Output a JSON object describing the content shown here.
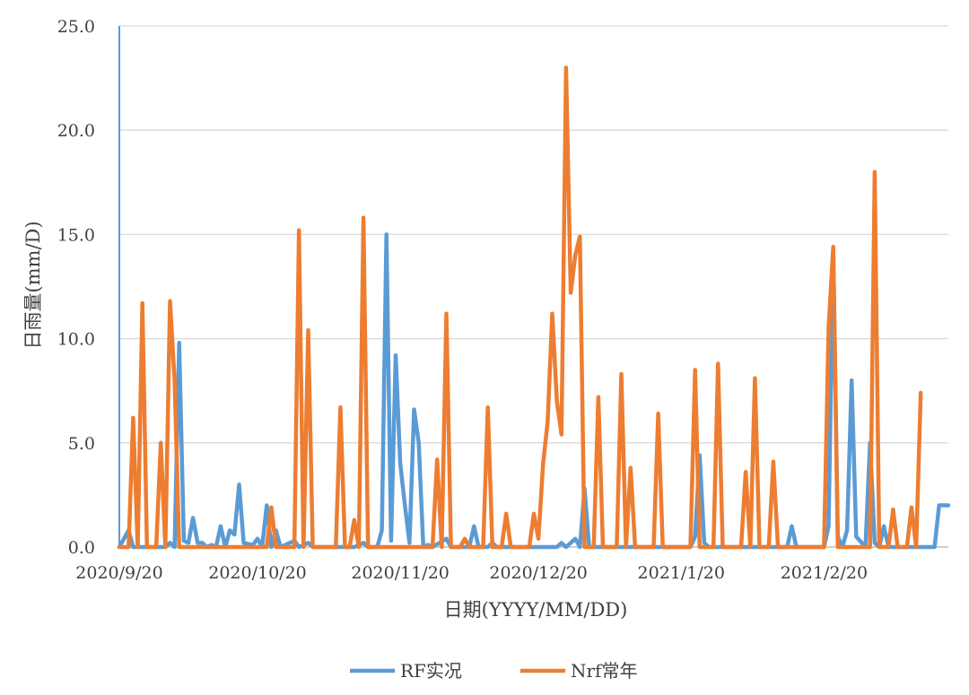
{
  "chart_data": {
    "type": "line",
    "xlabel": "日期(YYYY/MM/DD)",
    "ylabel": "日雨量(mm/D)",
    "ylim": [
      0,
      25
    ],
    "yticks": [
      "0.0",
      "5.0",
      "10.0",
      "15.0",
      "20.0",
      "25.0"
    ],
    "x_start": "2020/9/20",
    "x_end": "2021/3/19",
    "xticks": [
      "2020/9/20",
      "2020/10/20",
      "2020/11/20",
      "2020/12/20",
      "2021/1/20",
      "2021/2/20"
    ],
    "grid": true,
    "legend_position": "bottom",
    "series": [
      {
        "name": "RF实况",
        "color": "#5B9BD5",
        "points": [
          [
            "2020/9/20",
            0
          ],
          [
            "2020/9/22",
            0.8
          ],
          [
            "2020/9/23",
            0
          ],
          [
            "2020/9/30",
            0
          ],
          [
            "2020/10/1",
            0.2
          ],
          [
            "2020/10/2",
            0
          ],
          [
            "2020/10/3",
            9.8
          ],
          [
            "2020/10/4",
            0.3
          ],
          [
            "2020/10/5",
            0.2
          ],
          [
            "2020/10/6",
            1.4
          ],
          [
            "2020/10/7",
            0.2
          ],
          [
            "2020/10/8",
            0.2
          ],
          [
            "2020/10/9",
            0
          ],
          [
            "2020/10/10",
            0.1
          ],
          [
            "2020/10/11",
            0
          ],
          [
            "2020/10/12",
            1.0
          ],
          [
            "2020/10/13",
            0
          ],
          [
            "2020/10/14",
            0.8
          ],
          [
            "2020/10/15",
            0.6
          ],
          [
            "2020/10/16",
            3.0
          ],
          [
            "2020/10/17",
            0.2
          ],
          [
            "2020/10/19",
            0.1
          ],
          [
            "2020/10/20",
            0.4
          ],
          [
            "2020/10/21",
            0
          ],
          [
            "2020/10/22",
            2.0
          ],
          [
            "2020/10/23",
            0
          ],
          [
            "2020/10/24",
            0.8
          ],
          [
            "2020/10/25",
            0
          ],
          [
            "2020/10/28",
            0.3
          ],
          [
            "2020/10/29",
            0
          ],
          [
            "2020/10/31",
            0.2
          ],
          [
            "2020/11/1",
            0
          ],
          [
            "2020/11/10",
            0
          ],
          [
            "2020/11/12",
            0.2
          ],
          [
            "2020/11/13",
            0
          ],
          [
            "2020/11/15",
            0
          ],
          [
            "2020/11/16",
            0.8
          ],
          [
            "2020/11/17",
            15.0
          ],
          [
            "2020/11/18",
            0.3
          ],
          [
            "2020/11/19",
            9.2
          ],
          [
            "2020/11/20",
            4.0
          ],
          [
            "2020/11/21",
            2.0
          ],
          [
            "2020/11/22",
            0.2
          ],
          [
            "2020/11/23",
            6.6
          ],
          [
            "2020/11/24",
            5.0
          ],
          [
            "2020/11/25",
            0
          ],
          [
            "2020/11/26",
            0.1
          ],
          [
            "2020/11/27",
            0
          ],
          [
            "2020/11/30",
            0.4
          ],
          [
            "2020/12/1",
            0
          ],
          [
            "2020/12/5",
            0
          ],
          [
            "2020/12/6",
            1.0
          ],
          [
            "2020/12/7",
            0
          ],
          [
            "2020/12/9",
            0
          ],
          [
            "2020/12/10",
            0.2
          ],
          [
            "2020/12/11",
            0
          ],
          [
            "2020/12/24",
            0
          ],
          [
            "2020/12/25",
            0.2
          ],
          [
            "2020/12/26",
            0
          ],
          [
            "2020/12/28",
            0.4
          ],
          [
            "2020/12/29",
            0
          ],
          [
            "2020/12/30",
            2.8
          ],
          [
            "2020/12/31",
            0
          ],
          [
            "2021/1/22",
            0
          ],
          [
            "2021/1/23",
            0.5
          ],
          [
            "2021/1/24",
            4.4
          ],
          [
            "2021/1/25",
            0.2
          ],
          [
            "2021/1/26",
            0
          ],
          [
            "2021/2/12",
            0
          ],
          [
            "2021/2/13",
            1.0
          ],
          [
            "2021/2/14",
            0
          ],
          [
            "2021/2/20",
            0
          ],
          [
            "2021/2/21",
            1.0
          ],
          [
            "2021/2/22",
            14.2
          ],
          [
            "2021/2/23",
            0.5
          ],
          [
            "2021/2/24",
            0
          ],
          [
            "2021/2/25",
            0.8
          ],
          [
            "2021/2/26",
            8.0
          ],
          [
            "2021/2/27",
            0.5
          ],
          [
            "2021/3/1",
            0
          ],
          [
            "2021/3/2",
            5.0
          ],
          [
            "2021/3/3",
            0.2
          ],
          [
            "2021/3/4",
            0
          ],
          [
            "2021/3/5",
            1.0
          ],
          [
            "2021/3/6",
            0
          ],
          [
            "2021/3/16",
            0
          ],
          [
            "2021/3/17",
            2.0
          ],
          [
            "2021/3/19",
            2.0
          ]
        ]
      },
      {
        "name": "Nrf常年",
        "color": "#ED7D31",
        "points": [
          [
            "2020/9/20",
            0
          ],
          [
            "2020/9/22",
            0
          ],
          [
            "2020/9/23",
            6.2
          ],
          [
            "2020/9/24",
            0
          ],
          [
            "2020/9/25",
            11.7
          ],
          [
            "2020/9/26",
            0
          ],
          [
            "2020/9/28",
            0
          ],
          [
            "2020/9/29",
            5.0
          ],
          [
            "2020/9/30",
            0
          ],
          [
            "2020/10/1",
            11.8
          ],
          [
            "2020/10/2",
            8.0
          ],
          [
            "2020/10/3",
            0
          ],
          [
            "2020/10/22",
            0
          ],
          [
            "2020/10/23",
            1.9
          ],
          [
            "2020/10/24",
            0
          ],
          [
            "2020/10/28",
            0
          ],
          [
            "2020/10/29",
            15.2
          ],
          [
            "2020/10/30",
            0
          ],
          [
            "2020/10/31",
            10.4
          ],
          [
            "2020/11/1",
            0
          ],
          [
            "2020/11/6",
            0
          ],
          [
            "2020/11/7",
            6.7
          ],
          [
            "2020/11/8",
            0
          ],
          [
            "2020/11/9",
            0
          ],
          [
            "2020/11/10",
            1.3
          ],
          [
            "2020/11/11",
            0
          ],
          [
            "2020/11/12",
            15.8
          ],
          [
            "2020/11/13",
            0
          ],
          [
            "2020/11/27",
            0
          ],
          [
            "2020/11/28",
            4.2
          ],
          [
            "2020/11/29",
            0
          ],
          [
            "2020/11/30",
            11.2
          ],
          [
            "2020/12/1",
            0
          ],
          [
            "2020/12/3",
            0
          ],
          [
            "2020/12/4",
            0.4
          ],
          [
            "2020/12/5",
            0
          ],
          [
            "2020/12/8",
            0
          ],
          [
            "2020/12/9",
            6.7
          ],
          [
            "2020/12/10",
            0
          ],
          [
            "2020/12/12",
            0
          ],
          [
            "2020/12/13",
            1.6
          ],
          [
            "2020/12/14",
            0
          ],
          [
            "2020/12/18",
            0
          ],
          [
            "2020/12/19",
            1.6
          ],
          [
            "2020/12/20",
            0.4
          ],
          [
            "2020/12/21",
            4.0
          ],
          [
            "2020/12/22",
            6.0
          ],
          [
            "2020/12/23",
            11.2
          ],
          [
            "2020/12/24",
            7.0
          ],
          [
            "2020/12/25",
            5.4
          ],
          [
            "2020/12/26",
            23.0
          ],
          [
            "2020/12/27",
            12.2
          ],
          [
            "2020/12/28",
            14.0
          ],
          [
            "2020/12/29",
            14.9
          ],
          [
            "2020/12/30",
            0
          ],
          [
            "2021/1/1",
            0
          ],
          [
            "2021/1/2",
            7.2
          ],
          [
            "2021/1/3",
            0
          ],
          [
            "2021/1/6",
            0
          ],
          [
            "2021/1/7",
            8.3
          ],
          [
            "2021/1/8",
            0
          ],
          [
            "2021/1/9",
            3.8
          ],
          [
            "2021/1/10",
            0
          ],
          [
            "2021/1/14",
            0
          ],
          [
            "2021/1/15",
            6.4
          ],
          [
            "2021/1/16",
            0
          ],
          [
            "2021/1/22",
            0
          ],
          [
            "2021/1/23",
            8.5
          ],
          [
            "2021/1/24",
            0
          ],
          [
            "2021/1/27",
            0
          ],
          [
            "2021/1/28",
            8.8
          ],
          [
            "2021/1/29",
            0
          ],
          [
            "2021/2/2",
            0
          ],
          [
            "2021/2/3",
            3.6
          ],
          [
            "2021/2/4",
            0
          ],
          [
            "2021/2/5",
            8.1
          ],
          [
            "2021/2/6",
            0
          ],
          [
            "2021/2/8",
            0
          ],
          [
            "2021/2/9",
            4.1
          ],
          [
            "2021/2/10",
            0
          ],
          [
            "2021/2/20",
            0
          ],
          [
            "2021/2/21",
            10.5
          ],
          [
            "2021/2/22",
            14.4
          ],
          [
            "2021/2/23",
            0
          ],
          [
            "2021/3/2",
            0
          ],
          [
            "2021/3/3",
            18.0
          ],
          [
            "2021/3/4",
            0
          ],
          [
            "2021/3/6",
            0
          ],
          [
            "2021/3/7",
            1.8
          ],
          [
            "2021/3/8",
            0
          ],
          [
            "2021/3/10",
            0
          ],
          [
            "2021/3/11",
            1.9
          ],
          [
            "2021/3/12",
            0
          ],
          [
            "2021/3/13",
            7.4
          ]
        ]
      }
    ]
  }
}
